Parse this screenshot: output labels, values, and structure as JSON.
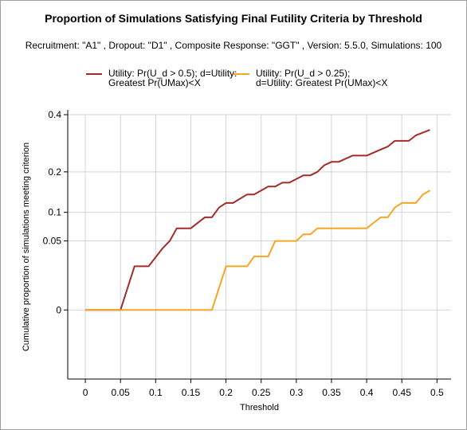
{
  "chart_data": {
    "type": "line",
    "title": "Proportion of Simulations Satisfying Final Futility Criteria by Threshold",
    "subtitle": "Recruitment: \"A1\" , Dropout: \"D1\" , Composite Response: \"GGT\" , Version: 5.5.0, Simulations: 100",
    "xlabel": "Threshold",
    "ylabel": "Cumulative proportion of simulations meeting criterion",
    "xlim": [
      -0.025,
      0.52
    ],
    "ylim": [
      -0.05,
      0.4
    ],
    "y_scale": "sqrt",
    "x_ticks": [
      0,
      0.05,
      0.1,
      0.15,
      0.2,
      0.25,
      0.3,
      0.35,
      0.4,
      0.45,
      0.5
    ],
    "x_tick_labels": [
      "0",
      "0.05",
      "0.1",
      "0.15",
      "0.2",
      "0.25",
      "0.3",
      "0.35",
      "0.4",
      "0.45",
      "0.5"
    ],
    "y_ticks": [
      0,
      0.05,
      0.1,
      0.2,
      0.4
    ],
    "y_tick_labels": [
      "0",
      "0.05",
      "0.1",
      "0.2",
      "0.4"
    ],
    "grid": true,
    "legend_position": "top",
    "series": [
      {
        "name": "Utility: Pr(U_d > 0.5); d=Utility:\nGreatest Pr(UMax)<X",
        "color": "#a52a2a",
        "x": [
          0,
          0.05,
          0.07,
          0.09,
          0.11,
          0.12,
          0.13,
          0.15,
          0.17,
          0.18,
          0.19,
          0.2,
          0.21,
          0.23,
          0.24,
          0.26,
          0.27,
          0.28,
          0.29,
          0.31,
          0.32,
          0.33,
          0.34,
          0.35,
          0.36,
          0.38,
          0.4,
          0.42,
          0.43,
          0.44,
          0.46,
          0.47,
          0.49
        ],
        "y": [
          0,
          0,
          0.02,
          0.02,
          0.04,
          0.05,
          0.07,
          0.07,
          0.09,
          0.09,
          0.11,
          0.12,
          0.12,
          0.14,
          0.14,
          0.16,
          0.16,
          0.17,
          0.17,
          0.19,
          0.19,
          0.2,
          0.22,
          0.23,
          0.23,
          0.25,
          0.25,
          0.27,
          0.28,
          0.3,
          0.3,
          0.32,
          0.34
        ]
      },
      {
        "name": "Utility: Pr(U_d > 0.25);\nd=Utility: Greatest Pr(UMax)<X",
        "color": "#f5a623",
        "x": [
          0,
          0.18,
          0.2,
          0.23,
          0.24,
          0.26,
          0.27,
          0.3,
          0.31,
          0.32,
          0.33,
          0.4,
          0.42,
          0.43,
          0.44,
          0.45,
          0.47,
          0.48,
          0.49
        ],
        "y": [
          0,
          0,
          0.02,
          0.02,
          0.03,
          0.03,
          0.05,
          0.05,
          0.06,
          0.06,
          0.07,
          0.07,
          0.09,
          0.09,
          0.11,
          0.12,
          0.12,
          0.14,
          0.15
        ]
      }
    ]
  }
}
